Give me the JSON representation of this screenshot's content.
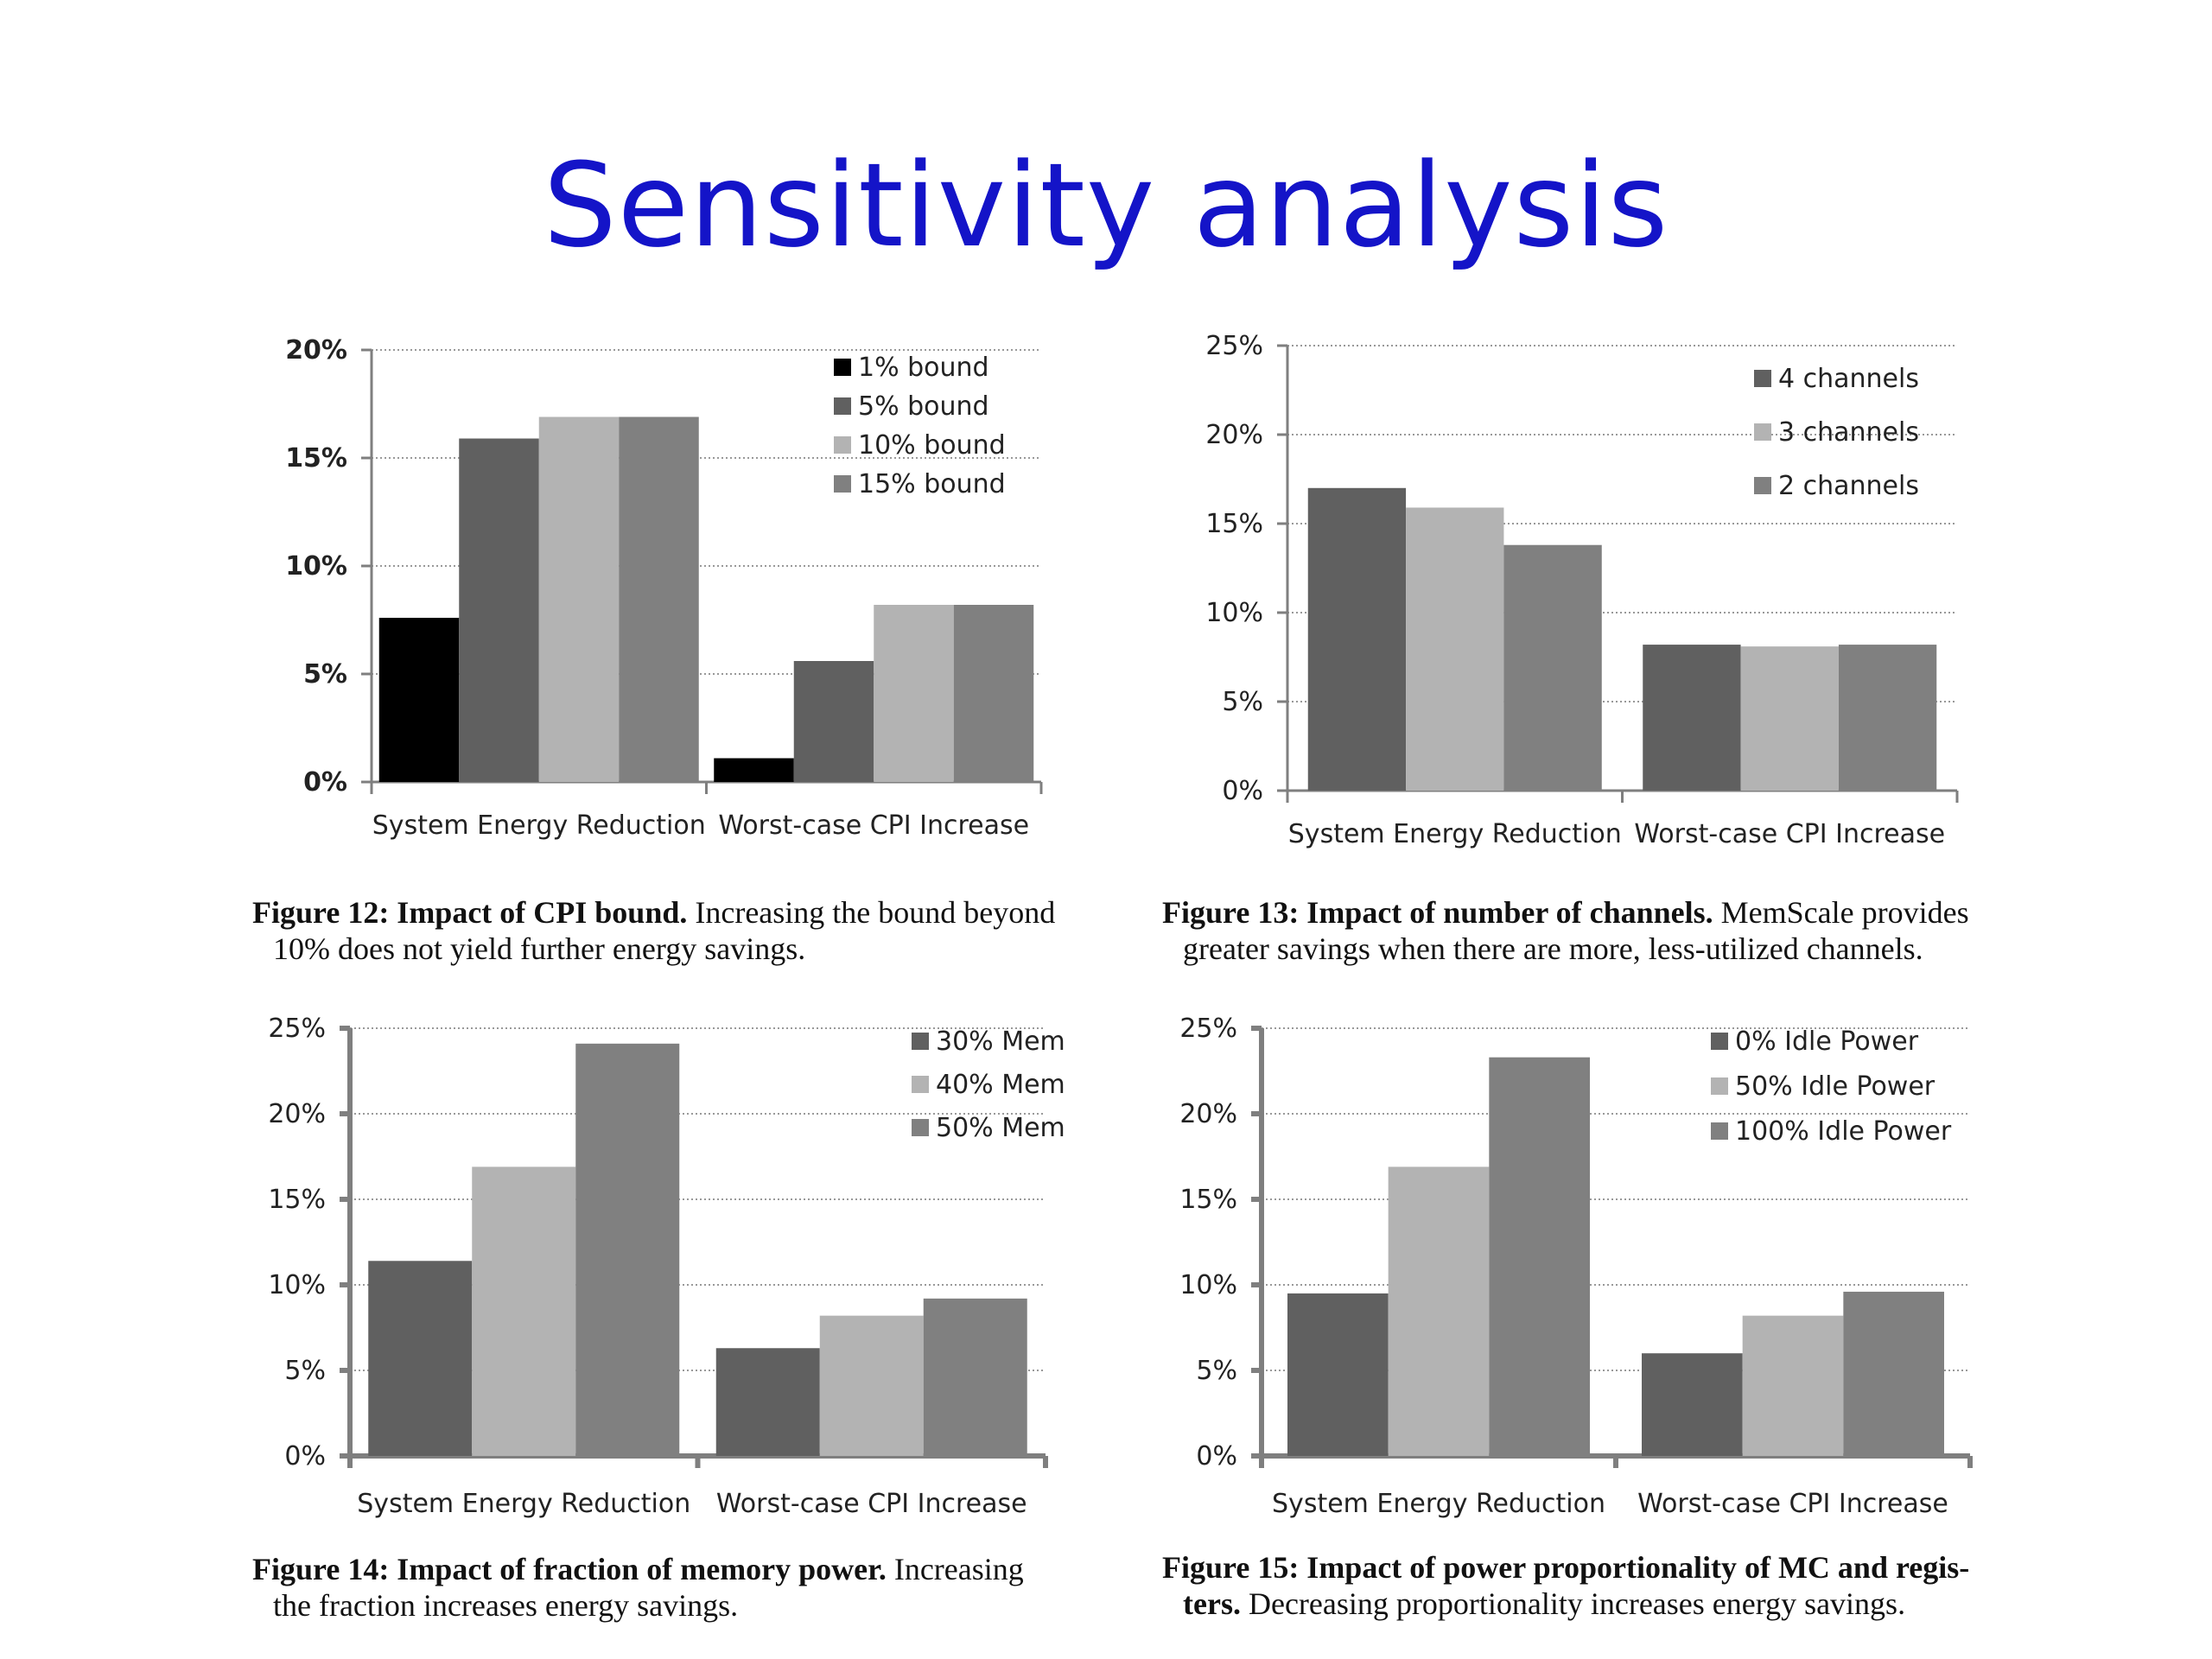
{
  "page": {
    "title": "Sensitivity analysis"
  },
  "colors": {
    "title": "#1414c8",
    "grid": "#999999",
    "axis": "#7f7f7f",
    "black": "#000000",
    "dark_gray": "#606060",
    "light_gray": "#b3b3b3",
    "mid_gray": "#808080"
  },
  "figures": [
    {
      "caption_bold": "Figure 12: Impact of CPI bound.",
      "caption_rest": "Increasing the bound beyond",
      "caption_line2": "10% does not yield further energy savings."
    },
    {
      "caption_bold": "Figure 13: Impact of number of channels.",
      "caption_rest": "MemScale provides",
      "caption_line2": "greater savings when there are more, less-utilized channels."
    },
    {
      "caption_bold": "Figure 14: Impact of fraction of memory power.",
      "caption_rest": "Increasing",
      "caption_line2": "the fraction increases energy savings."
    },
    {
      "caption_bold": "Figure 15: Impact of power proportionality of MC and regis-",
      "caption_rest": "",
      "caption_line2_bold": "ters.",
      "caption_line2": "Decreasing proportionality increases energy savings."
    }
  ],
  "chart_data": [
    {
      "type": "bar",
      "categories": [
        "System Energy Reduction",
        "Worst-case CPI Increase"
      ],
      "series": [
        {
          "name": "1% bound",
          "values": [
            7.6,
            1.1
          ],
          "color": "#000000"
        },
        {
          "name": "5% bound",
          "values": [
            15.9,
            5.6
          ],
          "color": "#606060"
        },
        {
          "name": "10% bound",
          "values": [
            16.9,
            8.2
          ],
          "color": "#b3b3b3"
        },
        {
          "name": "15% bound",
          "values": [
            16.9,
            8.2
          ],
          "color": "#808080"
        }
      ],
      "yticks": [
        "0%",
        "5%",
        "10%",
        "15%",
        "20%"
      ],
      "ylim": [
        0,
        20
      ],
      "grid": true,
      "legend": "top-right",
      "bold_ticks": true
    },
    {
      "type": "bar",
      "categories": [
        "System Energy Reduction",
        "Worst-case CPI Increase"
      ],
      "series": [
        {
          "name": "4 channels",
          "values": [
            17.0,
            8.2
          ],
          "color": "#606060"
        },
        {
          "name": "3 channels",
          "values": [
            15.9,
            8.1
          ],
          "color": "#b3b3b3"
        },
        {
          "name": "2 channels",
          "values": [
            13.8,
            8.2
          ],
          "color": "#808080"
        }
      ],
      "yticks": [
        "0%",
        "5%",
        "10%",
        "15%",
        "20%",
        "25%"
      ],
      "ylim": [
        0,
        25
      ],
      "grid": true,
      "legend": "top-right",
      "bold_ticks": false
    },
    {
      "type": "bar",
      "categories": [
        "System Energy Reduction",
        "Worst-case CPI Increase"
      ],
      "series": [
        {
          "name": "30% Mem",
          "values": [
            11.4,
            6.3
          ],
          "color": "#606060"
        },
        {
          "name": "40% Mem",
          "values": [
            16.9,
            8.2
          ],
          "color": "#b3b3b3"
        },
        {
          "name": "50% Mem",
          "values": [
            24.1,
            9.2
          ],
          "color": "#808080"
        }
      ],
      "yticks": [
        "0%",
        "5%",
        "10%",
        "15%",
        "20%",
        "25%"
      ],
      "ylim": [
        0,
        25
      ],
      "grid": true,
      "legend": "top-right",
      "bold_ticks": false
    },
    {
      "type": "bar",
      "categories": [
        "System Energy Reduction",
        "Worst-case CPI Increase"
      ],
      "series": [
        {
          "name": "0% Idle Power",
          "values": [
            9.5,
            6.0
          ],
          "color": "#606060"
        },
        {
          "name": "50% Idle Power",
          "values": [
            16.9,
            8.2
          ],
          "color": "#b3b3b3"
        },
        {
          "name": "100% Idle Power",
          "values": [
            23.3,
            9.6
          ],
          "color": "#808080"
        }
      ],
      "yticks": [
        "0%",
        "5%",
        "10%",
        "15%",
        "20%",
        "25%"
      ],
      "ylim": [
        0,
        25
      ],
      "grid": true,
      "legend": "top-right",
      "bold_ticks": false
    }
  ]
}
